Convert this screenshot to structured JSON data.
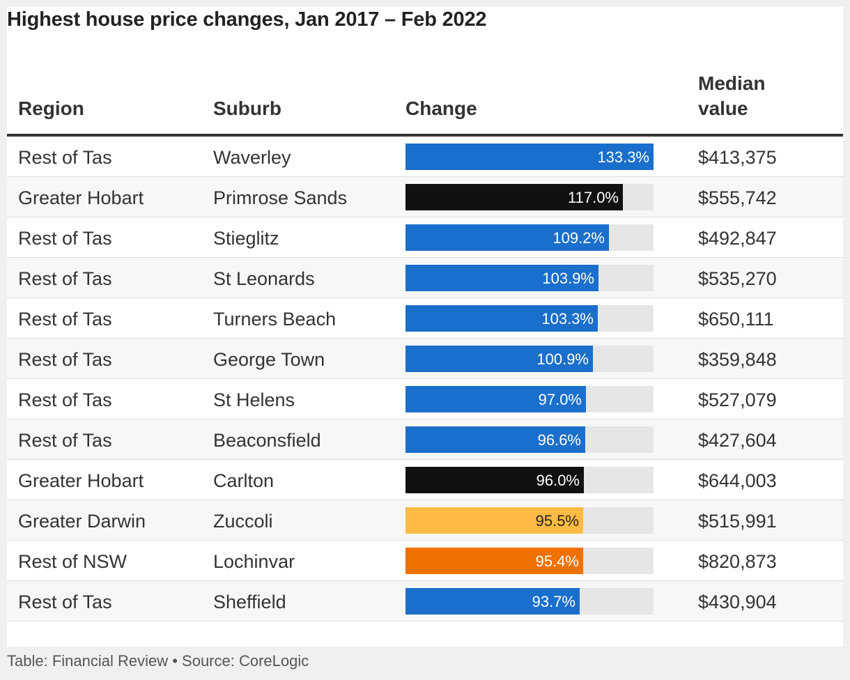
{
  "title": "Highest house price changes, Jan 2017 – Feb 2022",
  "headers": {
    "region": "Region",
    "suburb": "Suburb",
    "change": "Change",
    "median": "Median value"
  },
  "colors": {
    "Rest of Tas": "#1a6fcc",
    "Greater Hobart": "#111111",
    "Greater Darwin": "#ffbb44",
    "Rest of NSW": "#f07000",
    "track": "#e6e6e6"
  },
  "label_colors": {
    "Greater Darwin": "#222222"
  },
  "chart_data": {
    "type": "table",
    "bar_max": 133.3,
    "rows": [
      {
        "region": "Rest of Tas",
        "suburb": "Waverley",
        "change": 133.3,
        "change_label": "133.3%",
        "median": "$413,375"
      },
      {
        "region": "Greater Hobart",
        "suburb": "Primrose Sands",
        "change": 117.0,
        "change_label": "117.0%",
        "median": "$555,742"
      },
      {
        "region": "Rest of Tas",
        "suburb": "Stieglitz",
        "change": 109.2,
        "change_label": "109.2%",
        "median": "$492,847"
      },
      {
        "region": "Rest of Tas",
        "suburb": "St Leonards",
        "change": 103.9,
        "change_label": "103.9%",
        "median": "$535,270"
      },
      {
        "region": "Rest of Tas",
        "suburb": "Turners Beach",
        "change": 103.3,
        "change_label": "103.3%",
        "median": "$650,111"
      },
      {
        "region": "Rest of Tas",
        "suburb": "George Town",
        "change": 100.9,
        "change_label": "100.9%",
        "median": "$359,848"
      },
      {
        "region": "Rest of Tas",
        "suburb": "St Helens",
        "change": 97.0,
        "change_label": "97.0%",
        "median": "$527,079"
      },
      {
        "region": "Rest of Tas",
        "suburb": "Beaconsfield",
        "change": 96.6,
        "change_label": "96.6%",
        "median": "$427,604"
      },
      {
        "region": "Greater Hobart",
        "suburb": "Carlton",
        "change": 96.0,
        "change_label": "96.0%",
        "median": "$644,003"
      },
      {
        "region": "Greater Darwin",
        "suburb": "Zuccoli",
        "change": 95.5,
        "change_label": "95.5%",
        "median": "$515,991"
      },
      {
        "region": "Rest of NSW",
        "suburb": "Lochinvar",
        "change": 95.4,
        "change_label": "95.4%",
        "median": "$820,873"
      },
      {
        "region": "Rest of Tas",
        "suburb": "Sheffield",
        "change": 93.7,
        "change_label": "93.7%",
        "median": "$430,904"
      }
    ]
  },
  "footer": "Table: Financial Review • Source: CoreLogic"
}
